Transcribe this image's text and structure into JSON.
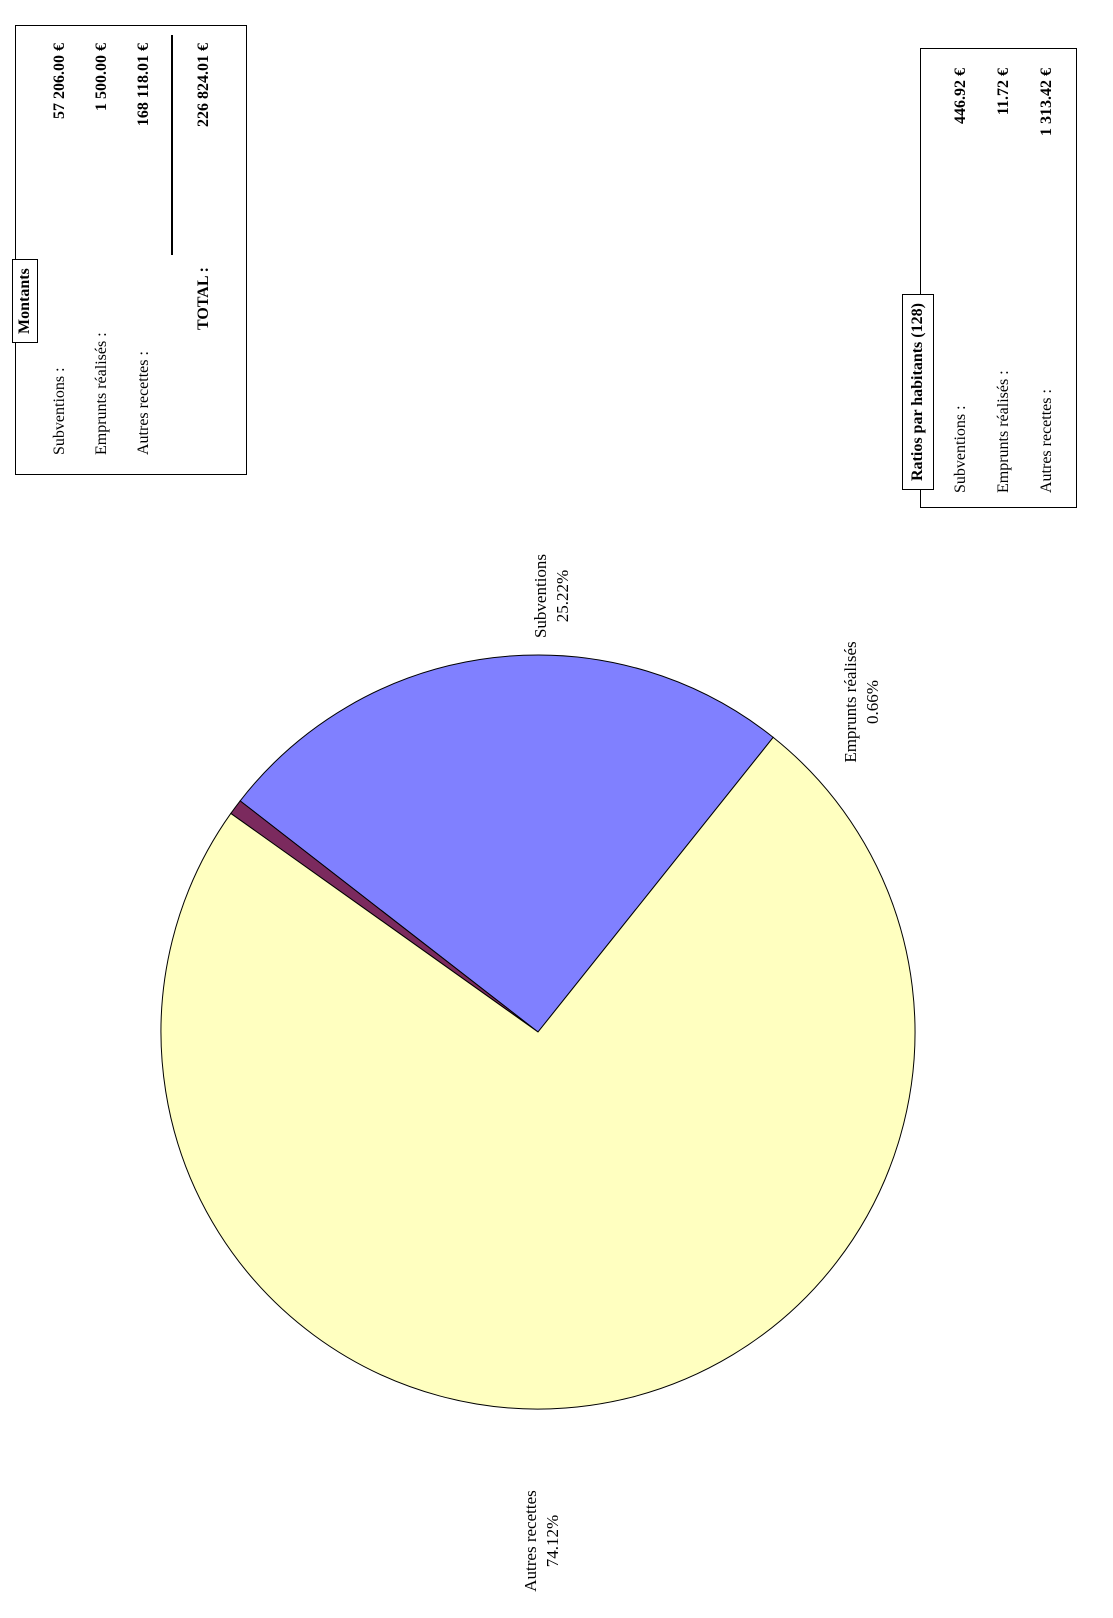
{
  "chart_data": {
    "type": "pie",
    "slices": [
      {
        "label": "Subventions",
        "percent": 25.22,
        "value": 57206.0,
        "color": "#8080ff"
      },
      {
        "label": "Emprunts réalisés",
        "percent": 0.66,
        "value": 1500.0,
        "color": "#7b2a5e"
      },
      {
        "label": "Autres recettes",
        "percent": 74.12,
        "value": 168118.01,
        "color": "#ffffc0"
      }
    ],
    "slice_labels": [
      {
        "name": "Subventions",
        "pct": "25.22%"
      },
      {
        "name": "Emprunts réalisés",
        "pct": "0.66%"
      },
      {
        "name": "Autres recettes",
        "pct": "74.12%"
      }
    ]
  },
  "montants": {
    "title": "Montants",
    "rows": [
      {
        "label": "Subventions :",
        "value": "57 206.00 €"
      },
      {
        "label": "Emprunts réalisés :",
        "value": "1 500.00 €"
      },
      {
        "label": "Autres recettes :",
        "value": "168 118.01 €"
      }
    ],
    "total_label": "TOTAL :",
    "total_value": "226 824.01 €"
  },
  "ratios": {
    "title": "Ratios par habitants (128)",
    "rows": [
      {
        "label": "Subventions :",
        "value": "446.92 €"
      },
      {
        "label": "Emprunts réalisés :",
        "value": "11.72 €"
      },
      {
        "label": "Autres recettes :",
        "value": "1 313.42 €"
      }
    ]
  }
}
